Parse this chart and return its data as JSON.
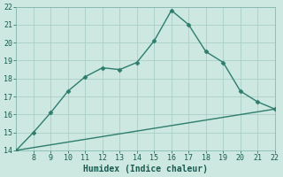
{
  "xlabel": "Humidex (Indice chaleur)",
  "ylabel": "",
  "xlim": [
    7,
    22
  ],
  "ylim": [
    14,
    22
  ],
  "xticks": [
    8,
    9,
    10,
    11,
    12,
    13,
    14,
    15,
    16,
    17,
    18,
    19,
    20,
    21,
    22
  ],
  "yticks": [
    14,
    15,
    16,
    17,
    18,
    19,
    20,
    21,
    22
  ],
  "line1_x": [
    7,
    8,
    9,
    10,
    11,
    12,
    13,
    14,
    15,
    16,
    17,
    18,
    19,
    20,
    21,
    22
  ],
  "line1_y": [
    14.0,
    15.0,
    16.1,
    17.3,
    18.1,
    18.6,
    18.5,
    18.9,
    20.1,
    21.8,
    21.0,
    19.5,
    18.9,
    17.3,
    16.7,
    16.3
  ],
  "line2_x": [
    7,
    22
  ],
  "line2_y": [
    14.0,
    16.3
  ],
  "line_color": "#2e7d6e",
  "bg_color": "#cce8e0",
  "grid_color": "#aacfc8",
  "marker": "D",
  "marker_size": 2.5,
  "linewidth": 1.0,
  "tick_fontsize": 6,
  "xlabel_fontsize": 7
}
